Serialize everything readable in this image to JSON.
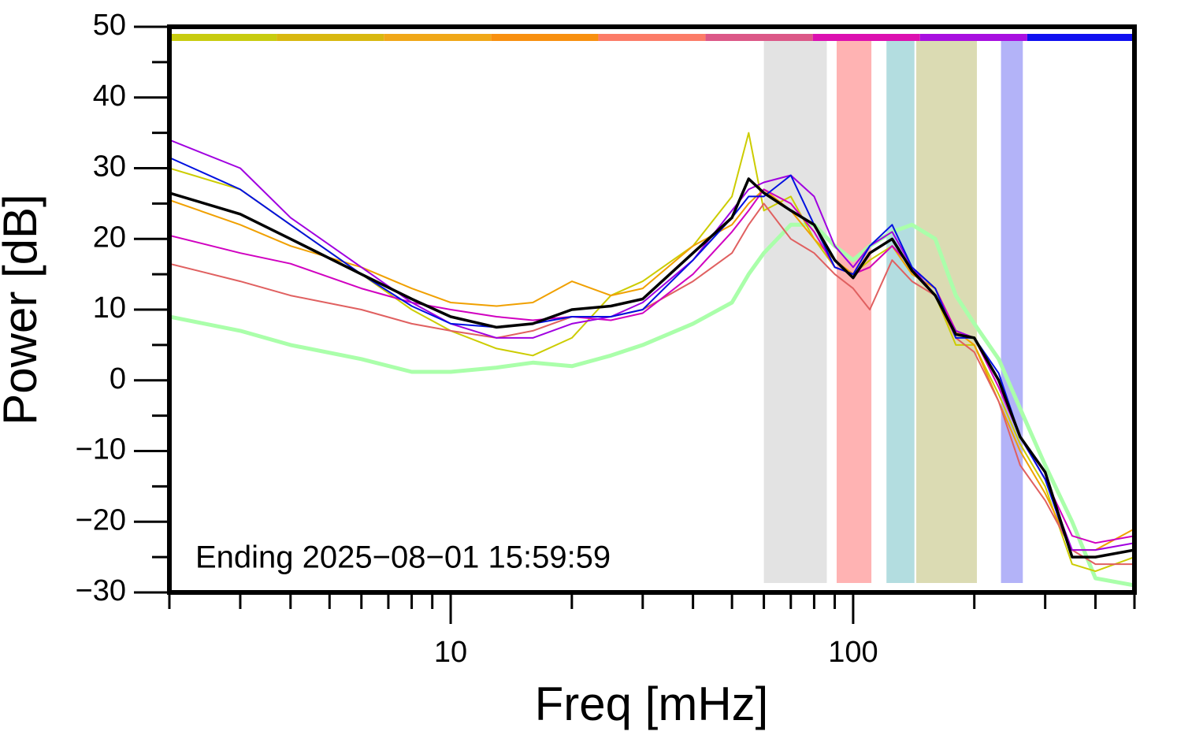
{
  "chart_data": {
    "type": "line",
    "xlabel": "Freq [mHz]",
    "ylabel": "Power [dB]",
    "annotation": "Ending 2025−08−01 15:59:59",
    "xscale": "log",
    "xlim": [
      2,
      500
    ],
    "ylim": [
      -30,
      50
    ],
    "xticks": [
      10,
      100
    ],
    "xticks_minor": [
      2,
      3,
      4,
      5,
      6,
      7,
      8,
      9,
      20,
      30,
      40,
      50,
      60,
      70,
      80,
      90,
      200,
      300,
      400,
      500
    ],
    "yticks": [
      {
        "value": -30,
        "label": "−30"
      },
      {
        "value": -20,
        "label": "−20"
      },
      {
        "value": -10,
        "label": "−10"
      },
      0,
      10,
      20,
      30,
      40,
      50
    ],
    "yticks_minor": [
      -25,
      -15,
      -5,
      5,
      15,
      25,
      35,
      45
    ],
    "bands": [
      {
        "xmin": 60,
        "xmax": 86,
        "color": "#e3e3e3"
      },
      {
        "xmin": 91,
        "xmax": 111,
        "color": "#ffb3b3"
      },
      {
        "xmin": 121,
        "xmax": 142,
        "color": "#b3dde0"
      },
      {
        "xmin": 143.5,
        "xmax": 203,
        "color": "#dbdbb3"
      },
      {
        "xmin": 233,
        "xmax": 264,
        "color": "#b3b3f8"
      }
    ],
    "top_bar_colors": [
      "#c8cc10",
      "#d8b810",
      "#f0a818",
      "#f89010",
      "#fc7c68",
      "#dc5888",
      "#dc10b0",
      "#a810e0",
      "#1010f0"
    ],
    "x": [
      2,
      3,
      4,
      6,
      8,
      10,
      13,
      16,
      20,
      25,
      30,
      40,
      50,
      55,
      60,
      70,
      80,
      90,
      100,
      110,
      125,
      140,
      160,
      180,
      200,
      230,
      260,
      300,
      350,
      400,
      500
    ],
    "series": [
      {
        "color": "#aaffaa",
        "width": 5,
        "values": [
          9,
          7,
          5,
          3,
          1.2,
          1.2,
          1.8,
          2.5,
          2,
          3.5,
          5,
          8,
          11,
          15,
          18,
          22,
          22,
          19,
          17,
          19,
          21,
          22,
          20,
          12,
          8,
          3,
          -4,
          -12,
          -20,
          -28,
          -29
        ]
      },
      {
        "color": "#cccc00",
        "width": 2,
        "values": [
          30,
          27,
          22,
          15,
          10,
          7,
          4.5,
          3.5,
          6,
          12,
          14,
          19,
          26,
          35,
          24,
          26,
          20,
          16,
          15,
          17,
          19,
          16,
          12,
          5,
          5,
          -2,
          -9,
          -15,
          -26,
          -27,
          -25
        ]
      },
      {
        "color": "#f0a000",
        "width": 2,
        "values": [
          25.5,
          22,
          19,
          16,
          13,
          11,
          10.5,
          11,
          14,
          12,
          13,
          19,
          22,
          25,
          27,
          24,
          20,
          17,
          15,
          16,
          19,
          15,
          13,
          7,
          5,
          -3,
          -10,
          -16,
          -24,
          -24,
          -21
        ]
      },
      {
        "color": "#e06060",
        "width": 2,
        "values": [
          16.5,
          14,
          12,
          10,
          8,
          7,
          6,
          7,
          9,
          9,
          10,
          14,
          18,
          22,
          25,
          20,
          18,
          15,
          13,
          10,
          17,
          14,
          12,
          6,
          4,
          -3,
          -12,
          -17,
          -24,
          -26,
          -26
        ]
      },
      {
        "color": "#d000c0",
        "width": 2,
        "values": [
          20.5,
          18,
          16.5,
          13,
          11,
          10,
          9,
          8.5,
          9,
          8.5,
          9.5,
          15,
          21,
          24,
          27,
          25,
          21,
          16,
          15,
          16,
          19,
          16,
          13,
          7,
          6,
          -1,
          -8,
          -14,
          -22,
          -23,
          -22
        ]
      },
      {
        "color": "#a000e0",
        "width": 2,
        "values": [
          34,
          30,
          23,
          16,
          11,
          8,
          6,
          6,
          8,
          9,
          11,
          17,
          24,
          27,
          28,
          29,
          26,
          19,
          16,
          19,
          21,
          16,
          12,
          7,
          6,
          0,
          -8,
          -14,
          -24,
          -24,
          -23
        ]
      },
      {
        "color": "#0010e0",
        "width": 2,
        "values": [
          31.5,
          27,
          22,
          15,
          10.5,
          8,
          7.5,
          8,
          9,
          9,
          10,
          17,
          23,
          26,
          26,
          29,
          22,
          16,
          15,
          19,
          22,
          16,
          13,
          6,
          6,
          1,
          -8,
          -14,
          -25,
          -25,
          -24
        ]
      },
      {
        "color": "#000000",
        "width": 3.5,
        "values": [
          26.5,
          23.5,
          20,
          15,
          11.5,
          9,
          7.5,
          8,
          10,
          10.5,
          11.5,
          18,
          23,
          28.5,
          26.5,
          24,
          22,
          17,
          14.5,
          18,
          20,
          15.5,
          12,
          6.5,
          6,
          0,
          -8,
          -13,
          -25,
          -25,
          -24
        ]
      }
    ]
  }
}
